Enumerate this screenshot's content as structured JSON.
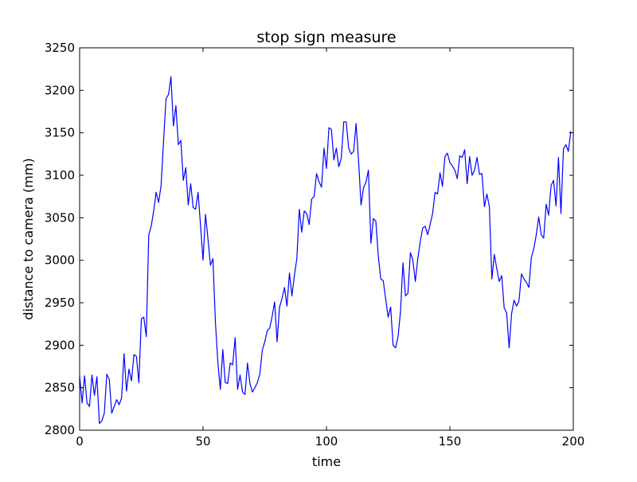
{
  "chart_data": {
    "type": "line",
    "title": "stop sign measure",
    "xlabel": "time",
    "ylabel": "distance to camera (mm)",
    "xlim": [
      0,
      200
    ],
    "ylim": [
      2800,
      3250
    ],
    "xticks": [
      0,
      50,
      100,
      150,
      200
    ],
    "yticks": [
      2800,
      2850,
      2900,
      2950,
      3000,
      3050,
      3100,
      3150,
      3200,
      3250
    ],
    "grid": false,
    "line_color": "#0000ff",
    "series": [
      {
        "x": [
          0,
          1,
          2,
          3,
          4,
          5,
          6,
          7,
          8,
          9,
          10,
          11,
          12,
          13,
          14,
          15,
          16,
          17,
          18,
          19,
          20,
          21,
          22,
          23,
          24,
          25,
          26,
          27,
          28,
          29,
          30,
          31,
          32,
          33,
          34,
          35,
          36,
          37,
          38,
          39,
          40,
          41,
          42,
          43,
          44,
          45,
          46,
          47,
          48,
          49,
          50,
          51,
          52,
          53,
          54,
          55,
          56,
          57,
          58,
          59,
          60,
          61,
          62,
          63,
          64,
          65,
          66,
          67,
          68,
          69,
          70,
          71,
          72,
          73,
          74,
          75,
          76,
          77,
          78,
          79,
          80,
          81,
          82,
          83,
          84,
          85,
          86,
          87,
          88,
          89,
          90,
          91,
          92,
          93,
          94,
          95,
          96,
          97,
          98,
          99,
          100,
          101,
          102,
          103,
          104,
          105,
          106,
          107,
          108,
          109,
          110,
          111,
          112,
          113,
          114,
          115,
          116,
          117,
          118,
          119,
          120,
          121,
          122,
          123,
          124,
          125,
          126,
          127,
          128,
          129,
          130,
          131,
          132,
          133,
          134,
          135,
          136,
          137,
          138,
          139,
          140,
          141,
          142,
          143,
          144,
          145,
          146,
          147,
          148,
          149,
          150,
          151,
          152,
          153,
          154,
          155,
          156,
          157,
          158,
          159,
          160,
          161,
          162,
          163,
          164,
          165,
          166,
          167,
          168,
          169,
          170,
          171,
          172,
          173,
          174,
          175,
          176,
          177,
          178,
          179,
          180,
          181,
          182,
          183,
          184,
          185,
          186,
          187,
          188,
          189,
          190,
          191,
          192,
          193,
          194,
          195,
          196,
          197,
          198,
          199
        ],
        "values": [
          2864,
          2832,
          2864,
          2832,
          2828,
          2865,
          2841,
          2863,
          2808,
          2811,
          2820,
          2866,
          2860,
          2820,
          2828,
          2836,
          2830,
          2838,
          2890,
          2846,
          2872,
          2858,
          2889,
          2887,
          2856,
          2931,
          2933,
          2910,
          3030,
          3040,
          3058,
          3080,
          3068,
          3088,
          3140,
          3190,
          3195,
          3216,
          3158,
          3182,
          3136,
          3141,
          3094,
          3109,
          3065,
          3090,
          3062,
          3060,
          3080,
          3040,
          3000,
          3054,
          3025,
          2994,
          3002,
          2928,
          2880,
          2848,
          2895,
          2856,
          2855,
          2879,
          2877,
          2909,
          2848,
          2865,
          2845,
          2842,
          2879,
          2855,
          2845,
          2850,
          2856,
          2866,
          2894,
          2904,
          2917,
          2920,
          2934,
          2951,
          2904,
          2945,
          2955,
          2968,
          2946,
          2985,
          2958,
          2982,
          3002,
          3060,
          3033,
          3058,
          3055,
          3042,
          3072,
          3075,
          3102,
          3092,
          3086,
          3132,
          3108,
          3156,
          3154,
          3118,
          3132,
          3110,
          3120,
          3163,
          3163,
          3132,
          3125,
          3128,
          3161,
          3118,
          3065,
          3085,
          3092,
          3106,
          3020,
          3049,
          3046,
          3005,
          2978,
          2976,
          2954,
          2933,
          2945,
          2900,
          2897,
          2910,
          2940,
          2997,
          2958,
          2961,
          3009,
          3000,
          2975,
          3002,
          3022,
          3038,
          3040,
          3030,
          3042,
          3055,
          3080,
          3078,
          3103,
          3087,
          3122,
          3126,
          3115,
          3111,
          3106,
          3096,
          3123,
          3121,
          3130,
          3090,
          3122,
          3100,
          3106,
          3121,
          3101,
          3102,
          3063,
          3078,
          3063,
          2978,
          3007,
          2990,
          2975,
          2982,
          2944,
          2938,
          2897,
          2937,
          2953,
          2946,
          2952,
          2984,
          2978,
          2974,
          2968,
          3003,
          3014,
          3030,
          3051,
          3030,
          3026,
          3066,
          3053,
          3088,
          3094,
          3064,
          3121,
          3055,
          3131,
          3136,
          3128,
          3152
        ]
      }
    ]
  }
}
